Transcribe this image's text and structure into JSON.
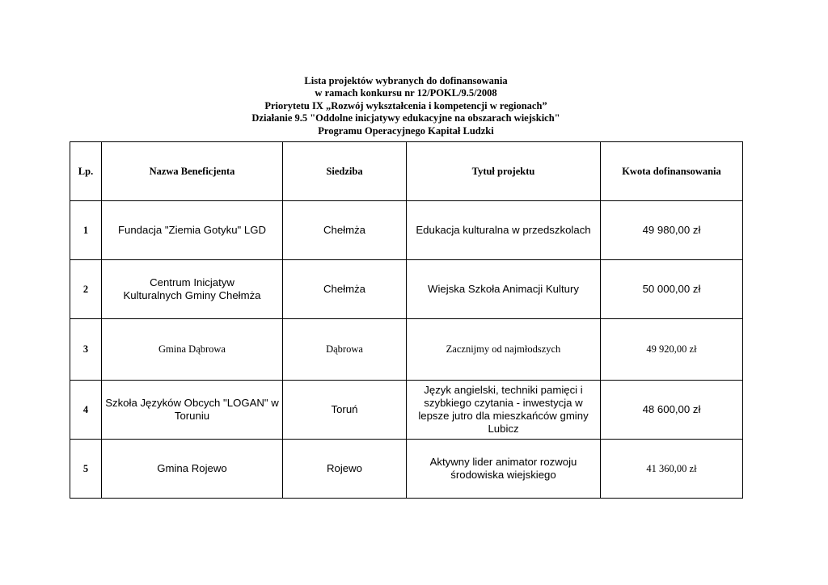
{
  "title_lines": [
    "Lista projektów wybranych do dofinansowania",
    "w ramach konkursu nr 12/POKL/9.5/2008",
    "Priorytetu IX „Rozwój wykształcenia i kompetencji w regionach”",
    "Działanie 9.5 \"Oddolne inicjatywy edukacyjne na obszarach wiejskich\"",
    "Programu Operacyjnego Kapitał Ludzki"
  ],
  "table": {
    "headers": [
      "Lp.",
      "Nazwa Beneficjenta",
      "Siedziba",
      "Tytuł projektu",
      "Kwota dofinansowania"
    ],
    "rows": [
      [
        "1",
        "Fundacja \"Ziemia Gotyku\" LGD",
        "Chełmża",
        "Edukacja kulturalna w przedszkolach",
        "49 980,00 zł"
      ],
      [
        "2",
        "Centrum Inicjatyw Kulturalnych Gminy Chełmża",
        "Chełmża",
        "Wiejska Szkoła Animacji Kultury",
        "50 000,00 zł"
      ],
      [
        "3",
        "Gmina Dąbrowa",
        "Dąbrowa",
        "Zacznijmy od najmłodszych",
        "49 920,00 zł"
      ],
      [
        "4",
        "Szkoła Języków Obcych \"LOGAN\" w Toruniu",
        "Toruń",
        "Język angielski, techniki pamięci i szybkiego czytania - inwestycja w lepsze jutro  dla mieszkańców gminy Lubicz",
        "48 600,00 zł"
      ],
      [
        "5",
        "Gmina Rojewo",
        "Rojewo",
        "Aktywny lider animator rozwoju środowiska wiejskiego",
        "41 360,00 zł"
      ]
    ]
  }
}
